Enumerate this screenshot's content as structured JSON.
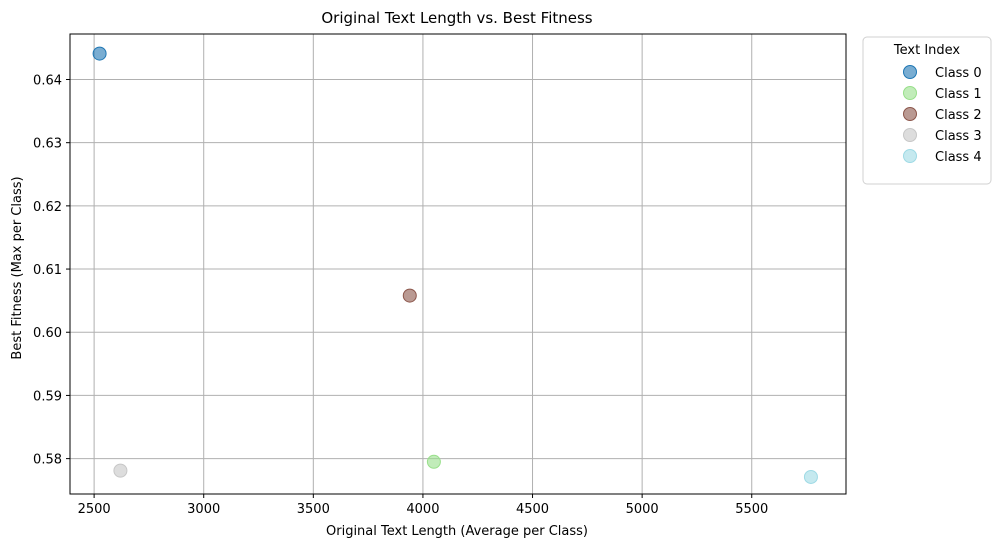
{
  "chart_data": {
    "type": "scatter",
    "title": "Original Text Length vs. Best Fitness",
    "xlabel": "Original Text Length (Average per Class)",
    "ylabel": "Best Fitness (Max per Class)",
    "xlim": [
      2390,
      5930
    ],
    "ylim": [
      0.5744,
      0.6472
    ],
    "xticks": [
      2500,
      3000,
      3500,
      4000,
      4500,
      5000,
      5500
    ],
    "yticks": [
      0.58,
      0.59,
      0.6,
      0.61,
      0.62,
      0.63,
      0.64
    ],
    "xtick_labels": [
      "2500",
      "3000",
      "3500",
      "4000",
      "4500",
      "5000",
      "5500"
    ],
    "ytick_labels": [
      "0.58",
      "0.59",
      "0.60",
      "0.61",
      "0.62",
      "0.63",
      "0.64"
    ],
    "grid": true,
    "legend": {
      "title": "Text Index",
      "placement": "outside-top-right"
    },
    "series": [
      {
        "name": "Class 0",
        "color": "#1f77b4",
        "points": [
          {
            "x": 2525,
            "y": 0.6441
          }
        ]
      },
      {
        "name": "Class 1",
        "color": "#98df8a",
        "points": [
          {
            "x": 4050,
            "y": 0.5795
          }
        ]
      },
      {
        "name": "Class 2",
        "color": "#8c564b",
        "points": [
          {
            "x": 3940,
            "y": 0.6058
          }
        ]
      },
      {
        "name": "Class 3",
        "color": "#c7c7c7",
        "points": [
          {
            "x": 2620,
            "y": 0.5781
          }
        ]
      },
      {
        "name": "Class 4",
        "color": "#9edae5",
        "points": [
          {
            "x": 5770,
            "y": 0.5771
          }
        ]
      }
    ]
  }
}
